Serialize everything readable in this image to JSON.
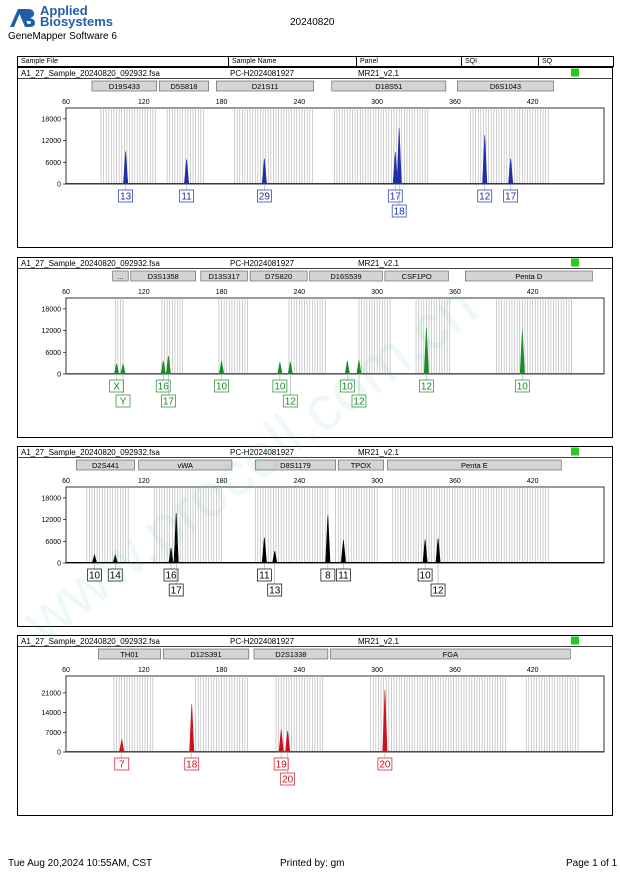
{
  "header": {
    "logo_word1": "Applied",
    "logo_word2": "Biosystems",
    "software": "GeneMapper Software 6",
    "run_date": "20240820"
  },
  "columns": [
    "Sample File",
    "Sample Name",
    "Panel",
    "SQI",
    "SQ"
  ],
  "footer": {
    "datetime": "Tue Aug 20,2024 10:55AM, CST",
    "printed_by": "Printed by: gm",
    "page": "Page 1 of 1"
  },
  "watermark": "www.procell.com.cn",
  "chart_data": [
    {
      "type": "line",
      "sample_file": "A1_27_Sample_20240820_092932.fsa",
      "sample_name": "PC-H2024081927",
      "panel": "MR21_v2.1",
      "color": "#1f2fa8",
      "xlim": [
        60,
        475
      ],
      "x_ticks": [
        60,
        120,
        180,
        240,
        300,
        360,
        420
      ],
      "ylim": [
        0,
        21000
      ],
      "y_ticks": [
        0,
        6000,
        12000,
        18000
      ],
      "loci": [
        {
          "name": "D19S433",
          "start": 80,
          "end": 130
        },
        {
          "name": "D5S818",
          "start": 132,
          "end": 170
        },
        {
          "name": "D21S11",
          "start": 176,
          "end": 251
        },
        {
          "name": "D18S51",
          "start": 265,
          "end": 353
        },
        {
          "name": "D6S1043",
          "start": 362,
          "end": 436
        }
      ],
      "bins": [
        [
          87,
          130
        ],
        [
          138,
          167
        ],
        [
          190,
          250
        ],
        [
          267,
          340
        ],
        [
          372,
          433
        ]
      ],
      "peaks": [
        {
          "x": 106,
          "y": 9000
        },
        {
          "x": 153,
          "y": 6800
        },
        {
          "x": 213,
          "y": 7000
        },
        {
          "x": 314,
          "y": 8800
        },
        {
          "x": 317,
          "y": 15500
        },
        {
          "x": 383,
          "y": 13500
        },
        {
          "x": 403,
          "y": 7000
        }
      ],
      "labels": [
        {
          "x": 106,
          "row": 1,
          "text": "13"
        },
        {
          "x": 153,
          "row": 1,
          "text": "11"
        },
        {
          "x": 213,
          "row": 1,
          "text": "29"
        },
        {
          "x": 314,
          "row": 1,
          "text": "17"
        },
        {
          "x": 317,
          "row": 2,
          "text": "18"
        },
        {
          "x": 383,
          "row": 1,
          "text": "12"
        },
        {
          "x": 403,
          "row": 1,
          "text": "17"
        }
      ]
    },
    {
      "type": "line",
      "sample_file": "A1_27_Sample_20240820_092932.fsa",
      "sample_name": "PC-H2024081927",
      "panel": "MR21_v2.1",
      "color": "#1b8a2a",
      "xlim": [
        60,
        475
      ],
      "x_ticks": [
        60,
        120,
        180,
        240,
        300,
        360,
        420
      ],
      "ylim": [
        0,
        21000
      ],
      "y_ticks": [
        0,
        6000,
        12000,
        18000
      ],
      "loci": [
        {
          "name": "...",
          "start": 96,
          "end": 108
        },
        {
          "name": "D3S1358",
          "start": 110,
          "end": 160
        },
        {
          "name": "D13S317",
          "start": 164,
          "end": 200
        },
        {
          "name": "D7S820",
          "start": 202,
          "end": 246
        },
        {
          "name": "D16S539",
          "start": 248,
          "end": 304
        },
        {
          "name": "CSF1PO",
          "start": 306,
          "end": 355
        },
        {
          "name": "Penta D",
          "start": 368,
          "end": 466
        }
      ],
      "bins": [
        [
          98,
          104
        ],
        [
          134,
          150
        ],
        [
          178,
          200
        ],
        [
          232,
          260
        ],
        [
          286,
          310
        ],
        [
          330,
          356
        ],
        [
          392,
          450
        ]
      ],
      "peaks": [
        {
          "x": 99,
          "y": 2800
        },
        {
          "x": 104,
          "y": 2800
        },
        {
          "x": 135,
          "y": 3600
        },
        {
          "x": 139,
          "y": 5000
        },
        {
          "x": 180,
          "y": 3600
        },
        {
          "x": 225,
          "y": 3300
        },
        {
          "x": 233,
          "y": 3300
        },
        {
          "x": 277,
          "y": 3600
        },
        {
          "x": 286,
          "y": 3800
        },
        {
          "x": 338,
          "y": 12800
        },
        {
          "x": 412,
          "y": 12000
        }
      ],
      "labels": [
        {
          "x": 99,
          "row": 1,
          "text": "X"
        },
        {
          "x": 104,
          "row": 2,
          "text": "Y"
        },
        {
          "x": 135,
          "row": 1,
          "text": "16"
        },
        {
          "x": 139,
          "row": 2,
          "text": "17"
        },
        {
          "x": 180,
          "row": 1,
          "text": "10"
        },
        {
          "x": 225,
          "row": 1,
          "text": "10"
        },
        {
          "x": 233,
          "row": 2,
          "text": "12"
        },
        {
          "x": 277,
          "row": 1,
          "text": "10"
        },
        {
          "x": 286,
          "row": 2,
          "text": "12"
        },
        {
          "x": 338,
          "row": 1,
          "text": "12"
        },
        {
          "x": 412,
          "row": 1,
          "text": "10"
        }
      ]
    },
    {
      "type": "line",
      "sample_file": "A1_27_Sample_20240820_092932.fsa",
      "sample_name": "PC-H2024081927",
      "panel": "MR21_v2.1",
      "color": "#000000",
      "xlim": [
        60,
        475
      ],
      "x_ticks": [
        60,
        120,
        180,
        240,
        300,
        360,
        420
      ],
      "ylim": [
        0,
        21000
      ],
      "y_ticks": [
        0,
        6000,
        12000,
        18000
      ],
      "loci": [
        {
          "name": "D2S441",
          "start": 68,
          "end": 113
        },
        {
          "name": "vWA",
          "start": 116,
          "end": 188
        },
        {
          "name": "D8S1179",
          "start": 206,
          "end": 268
        },
        {
          "name": "TPOX",
          "start": 270,
          "end": 305
        },
        {
          "name": "Penta E",
          "start": 308,
          "end": 442
        }
      ],
      "bins": [
        [
          76,
          108
        ],
        [
          128,
          180
        ],
        [
          206,
          262
        ],
        [
          268,
          300
        ],
        [
          312,
          432
        ]
      ],
      "peaks": [
        {
          "x": 82,
          "y": 2200
        },
        {
          "x": 98,
          "y": 2200
        },
        {
          "x": 141,
          "y": 4200
        },
        {
          "x": 145,
          "y": 13800
        },
        {
          "x": 213,
          "y": 7000
        },
        {
          "x": 221,
          "y": 3300
        },
        {
          "x": 262,
          "y": 13200
        },
        {
          "x": 274,
          "y": 6300
        },
        {
          "x": 337,
          "y": 6500
        },
        {
          "x": 347,
          "y": 6800
        }
      ],
      "labels": [
        {
          "x": 82,
          "row": 1,
          "text": "10"
        },
        {
          "x": 98,
          "row": 1,
          "text": "14"
        },
        {
          "x": 141,
          "row": 1,
          "text": "16"
        },
        {
          "x": 145,
          "row": 2,
          "text": "17"
        },
        {
          "x": 213,
          "row": 1,
          "text": "11"
        },
        {
          "x": 221,
          "row": 2,
          "text": "13"
        },
        {
          "x": 262,
          "row": 1,
          "text": "8"
        },
        {
          "x": 274,
          "row": 1,
          "text": "11"
        },
        {
          "x": 337,
          "row": 1,
          "text": "10"
        },
        {
          "x": 347,
          "row": 2,
          "text": "12"
        }
      ]
    },
    {
      "type": "line",
      "sample_file": "A1_27_Sample_20240820_092932.fsa",
      "sample_name": "PC-H2024081927",
      "panel": "MR21_v2.1",
      "color": "#c8141e",
      "xlim": [
        60,
        475
      ],
      "x_ticks": [
        60,
        120,
        180,
        240,
        300,
        360,
        420
      ],
      "ylim": [
        0,
        27000
      ],
      "y_ticks": [
        0,
        7000,
        14000,
        21000
      ],
      "loci": [
        {
          "name": "TH01",
          "start": 85,
          "end": 133
        },
        {
          "name": "D12S391",
          "start": 135,
          "end": 201
        },
        {
          "name": "D2S1338",
          "start": 205,
          "end": 262
        },
        {
          "name": "FGA",
          "start": 264,
          "end": 449
        }
      ],
      "bins": [
        [
          97,
          128
        ],
        [
          160,
          200
        ],
        [
          222,
          258
        ],
        [
          295,
          400
        ],
        [
          415,
          455
        ]
      ],
      "peaks": [
        {
          "x": 103,
          "y": 4500
        },
        {
          "x": 157,
          "y": 17000
        },
        {
          "x": 226,
          "y": 8000
        },
        {
          "x": 231,
          "y": 7500
        },
        {
          "x": 306,
          "y": 22000
        }
      ],
      "labels": [
        {
          "x": 103,
          "row": 1,
          "text": "7"
        },
        {
          "x": 157,
          "row": 1,
          "text": "18"
        },
        {
          "x": 226,
          "row": 1,
          "text": "19"
        },
        {
          "x": 231,
          "row": 2,
          "text": "20"
        },
        {
          "x": 306,
          "row": 1,
          "text": "20"
        }
      ]
    }
  ]
}
